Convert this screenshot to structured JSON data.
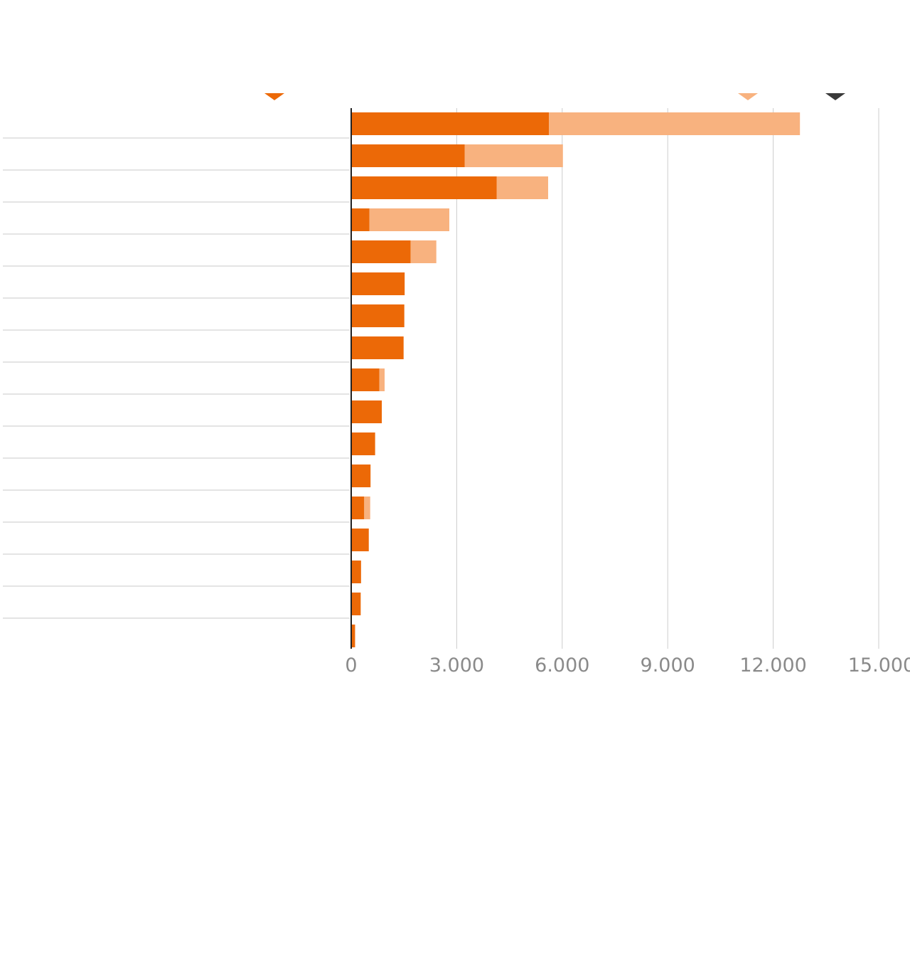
{
  "chart_data": {
    "type": "bar",
    "orientation": "horizontal",
    "stacked": true,
    "title": "",
    "xlabel": "",
    "ylabel": "",
    "categories": [
      "",
      "",
      "",
      "",
      "",
      "",
      "",
      "",
      "",
      "",
      "",
      "",
      "",
      "",
      "",
      "",
      ""
    ],
    "series": [
      {
        "values": [
          5620,
          3230,
          4140,
          520,
          1690,
          1520,
          1510,
          1490,
          800,
          870,
          680,
          550,
          370,
          500,
          280,
          270,
          110
        ]
      },
      {
        "values": [
          7140,
          2790,
          1460,
          2270,
          730,
          0,
          0,
          0,
          150,
          0,
          0,
          0,
          170,
          0,
          0,
          0,
          0
        ]
      }
    ],
    "xlim": [
      0,
      15000
    ],
    "xticks": [
      0,
      3000,
      6000,
      9000,
      12000,
      15000
    ],
    "xtick_labels": [
      "0",
      "3.000",
      "6.000",
      "9.000",
      "12.000",
      "15.000"
    ],
    "grid": true,
    "legend_markers": [
      "#ec6907",
      "#f8b27f",
      "#3a3a3a"
    ],
    "colors": {
      "series_1": "#ec6907",
      "series_2": "#f8b27f",
      "grid": "#cccccc",
      "axis": "#222222",
      "tick_text": "#8a8a8a",
      "marker_dark": "#3a3a3a"
    }
  }
}
